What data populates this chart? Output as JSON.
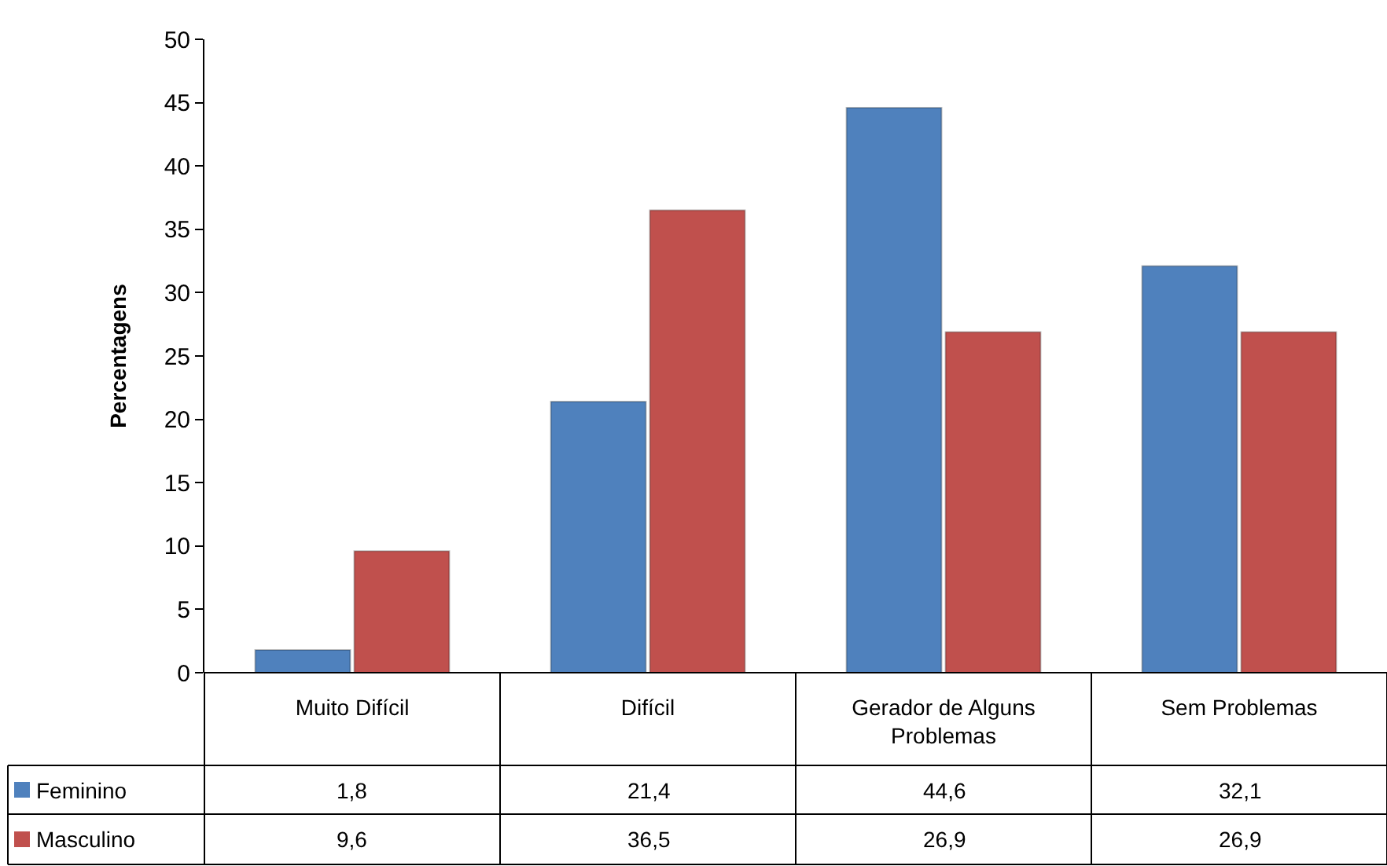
{
  "chart_data": {
    "type": "bar",
    "ylabel": "Percentagens",
    "categories": [
      "Muito Difícil",
      "Difícil",
      "Gerador de Alguns Problemas",
      "Sem Problemas"
    ],
    "series": [
      {
        "name": "Feminino",
        "color": "#4f81bd",
        "values": [
          1.8,
          21.4,
          44.6,
          32.1
        ],
        "value_labels": [
          "1,8",
          "21,4",
          "44,6",
          "32,1"
        ]
      },
      {
        "name": "Masculino",
        "color": "#c0504d",
        "values": [
          9.6,
          36.5,
          26.9,
          26.9
        ],
        "value_labels": [
          "9,6",
          "36,5",
          "26,9",
          "26,9"
        ]
      }
    ],
    "ylim": [
      0,
      50
    ],
    "yticks": [
      0,
      5,
      10,
      15,
      20,
      25,
      30,
      35,
      40,
      45,
      50
    ],
    "grid": false,
    "legend": "bottom left"
  }
}
